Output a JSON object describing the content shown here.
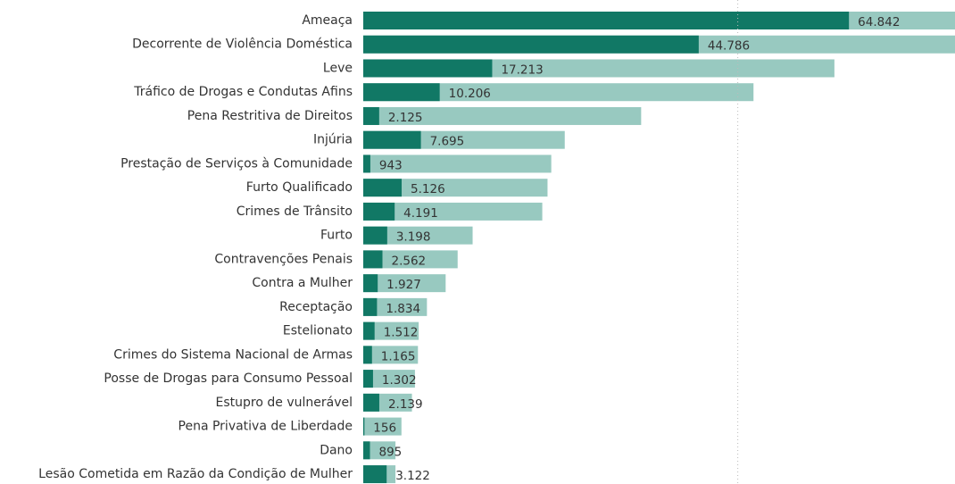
{
  "chart_data": {
    "type": "bar",
    "orientation": "horizontal",
    "categories": [
      "Ameaça",
      "Decorrente de Violência Doméstica",
      "Leve",
      "Tráfico de Drogas e Condutas Afins",
      "Pena Restritiva de Direitos",
      "Injúria",
      "Prestação de Serviços à Comunidade",
      "Furto Qualificado",
      "Crimes de Trânsito",
      "Furto",
      "Contravenções Penais",
      "Contra a Mulher",
      "Receptação",
      "Estelionato",
      "Crimes do Sistema Nacional de Armas",
      "Posse de Drogas para Consumo Pessoal",
      "Estupro de vulnerável",
      "Pena Privativa de Liberdade",
      "Dano",
      "Lesão Cometida em Razão da Condição de Mulher"
    ],
    "series": [
      {
        "color": "#98c9c0",
        "values": [
          80000,
          79500,
          62900,
          52100,
          37100,
          26900,
          25100,
          24600,
          23900,
          14600,
          12600,
          11000,
          8500,
          7400,
          7300,
          6900,
          6500,
          5100,
          4300,
          4300
        ]
      },
      {
        "color": "#117865",
        "values": [
          64842,
          44786,
          17213,
          10206,
          2125,
          7695,
          943,
          5126,
          4191,
          3198,
          2562,
          1927,
          1834,
          1512,
          1165,
          1302,
          2139,
          156,
          895,
          3122
        ],
        "value_labels": [
          "64.842",
          "44.786",
          "17.213",
          "10.206",
          "2.125",
          "7.695",
          "943",
          "5.126",
          "4.191",
          "3.198",
          "2.562",
          "1.927",
          "1.834",
          "1.512",
          "1.165",
          "1.302",
          "2.139",
          "156",
          "895",
          "3.122"
        ]
      }
    ],
    "xlim": [
      0,
      79000
    ],
    "xticks": [
      50000
    ],
    "grid": true
  }
}
